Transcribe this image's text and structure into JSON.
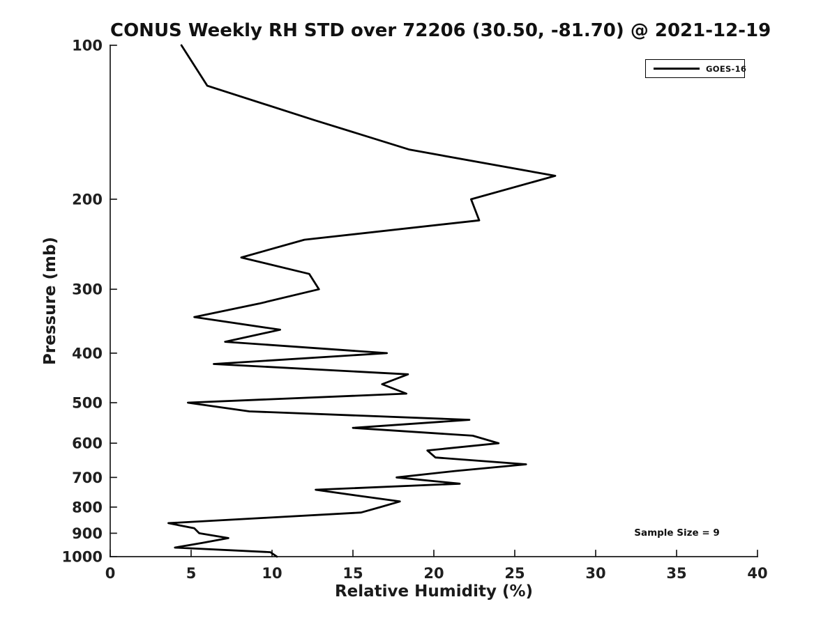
{
  "chart_data": {
    "type": "line",
    "title": "CONUS Weekly RH STD over 72206 (30.50, -81.70) @ 2021-12-19",
    "xlabel": "Relative Humidity (%)",
    "ylabel": "Pressure (mb)",
    "xlim": [
      0,
      40
    ],
    "xticks": [
      0,
      5,
      10,
      15,
      20,
      25,
      30,
      35,
      40
    ],
    "ylim": [
      100,
      1000
    ],
    "yticks": [
      100,
      200,
      300,
      400,
      500,
      600,
      700,
      800,
      900,
      1000
    ],
    "y_scale": "log",
    "y_axis_inverted": true,
    "grid": false,
    "legend_position": "top-right",
    "annotations": [
      {
        "text": "Sample Size = 9",
        "location": "lower-right"
      }
    ],
    "series": [
      {
        "name": "GOES-16",
        "color": "#000000",
        "pressure_mb": [
          100,
          120,
          140,
          160,
          180,
          200,
          220,
          240,
          260,
          280,
          300,
          320,
          340,
          360,
          380,
          400,
          420,
          440,
          460,
          480,
          500,
          520,
          540,
          560,
          580,
          600,
          620,
          640,
          660,
          680,
          700,
          720,
          740,
          760,
          780,
          800,
          820,
          840,
          860,
          880,
          900,
          920,
          940,
          960,
          980,
          1000
        ],
        "rh_std_percent": [
          4.4,
          6.0,
          12.6,
          18.5,
          27.5,
          22.3,
          22.8,
          12.0,
          8.1,
          12.3,
          12.9,
          9.2,
          5.2,
          10.5,
          7.1,
          17.1,
          6.4,
          18.4,
          16.8,
          18.3,
          4.8,
          8.6,
          22.2,
          15.0,
          22.4,
          24.0,
          19.6,
          20.1,
          25.7,
          21.3,
          17.7,
          21.6,
          12.7,
          15.3,
          17.9,
          16.7,
          15.5,
          9.5,
          3.6,
          5.2,
          5.5,
          7.3,
          5.7,
          4.0,
          9.9,
          10.3
        ]
      }
    ],
    "colors": {
      "line": "#000000",
      "text": "#1a1a1a",
      "background": "#ffffff"
    }
  }
}
